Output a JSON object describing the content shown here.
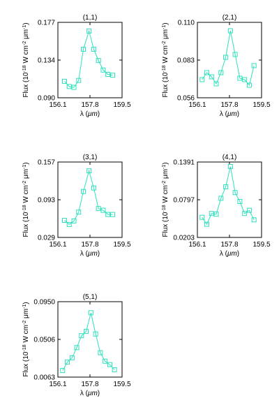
{
  "colors": {
    "series": "#2ee0bd",
    "axes": "#000000",
    "background": "#ffffff"
  },
  "chart_data": [
    {
      "type": "line",
      "title": "(1,1)",
      "xlabel": "λ (μm)",
      "ylabel": "Flux (10^-18 W cm^-2 μm^-1)",
      "xlim": [
        156.1,
        159.5
      ],
      "ylim": [
        0.09,
        0.177
      ],
      "xticks": [
        "156.1",
        "157.8",
        "159.5"
      ],
      "yticks": [
        "0.090",
        "0.134",
        "0.177"
      ],
      "grid": false,
      "marker": "square",
      "x": [
        156.45,
        156.7,
        156.95,
        157.2,
        157.45,
        157.75,
        158.0,
        158.25,
        158.5,
        158.75,
        159.0
      ],
      "y": [
        0.109,
        0.103,
        0.102,
        0.11,
        0.146,
        0.167,
        0.146,
        0.133,
        0.122,
        0.117,
        0.116
      ]
    },
    {
      "type": "line",
      "title": "(2,1)",
      "xlabel": "λ (μm)",
      "ylabel": "Flux (10^-18 W cm^-2 μm^-1)",
      "xlim": [
        156.1,
        159.5
      ],
      "ylim": [
        0.056,
        0.11
      ],
      "xticks": [
        "156.1",
        "157.8",
        "159.5"
      ],
      "yticks": [
        "0.056",
        "0.083",
        "0.110"
      ],
      "grid": false,
      "marker": "square",
      "x": [
        156.35,
        156.6,
        156.85,
        157.1,
        157.35,
        157.6,
        157.85,
        158.1,
        158.35,
        158.6,
        158.85,
        159.1
      ],
      "y": [
        0.069,
        0.074,
        0.071,
        0.066,
        0.074,
        0.085,
        0.104,
        0.087,
        0.07,
        0.069,
        0.065,
        0.079
      ]
    },
    {
      "type": "line",
      "title": "(3,1)",
      "xlabel": "λ (μm)",
      "ylabel": "Flux (10^-18 W cm^-2 μm^-1)",
      "xlim": [
        156.1,
        159.5
      ],
      "ylim": [
        0.029,
        0.157
      ],
      "xticks": [
        "156.1",
        "157.8",
        "159.5"
      ],
      "yticks": [
        "0.029",
        "0.093",
        "0.157"
      ],
      "grid": false,
      "marker": "square",
      "x": [
        156.45,
        156.7,
        156.95,
        157.2,
        157.45,
        157.75,
        158.0,
        158.25,
        158.5,
        158.75,
        159.0
      ],
      "y": [
        0.058,
        0.051,
        0.057,
        0.072,
        0.107,
        0.142,
        0.113,
        0.078,
        0.075,
        0.068,
        0.068
      ]
    },
    {
      "type": "line",
      "title": "(4,1)",
      "xlabel": "λ (μm)",
      "ylabel": "Flux (10^-18 W cm^-2 μm^-1)",
      "xlim": [
        156.1,
        159.5
      ],
      "ylim": [
        0.0203,
        0.1391
      ],
      "xticks": [
        "156.1",
        "157.8",
        "159.5"
      ],
      "yticks": [
        "0.0203",
        "0.0797",
        "0.1391"
      ],
      "grid": false,
      "marker": "square",
      "x": [
        156.35,
        156.6,
        156.85,
        157.1,
        157.35,
        157.6,
        157.85,
        158.1,
        158.35,
        158.6,
        158.85,
        159.1
      ],
      "y": [
        0.052,
        0.041,
        0.058,
        0.057,
        0.082,
        0.1,
        0.132,
        0.091,
        0.077,
        0.058,
        0.063,
        0.048
      ]
    },
    {
      "type": "line",
      "title": "(5,1)",
      "xlabel": "λ (μm)",
      "ylabel": "Flux (10^-18 W cm^-2 μm^-1)",
      "xlim": [
        156.1,
        159.5
      ],
      "ylim": [
        0.0063,
        0.095
      ],
      "xticks": [
        "156.1",
        "157.8",
        "159.5"
      ],
      "yticks": [
        "0.0063",
        "0.0506",
        "0.0950"
      ],
      "grid": false,
      "marker": "square",
      "x": [
        156.35,
        156.6,
        156.85,
        157.1,
        157.35,
        157.6,
        157.85,
        158.1,
        158.35,
        158.6,
        158.85,
        159.1
      ],
      "y": [
        0.014,
        0.024,
        0.029,
        0.041,
        0.055,
        0.06,
        0.082,
        0.057,
        0.035,
        0.025,
        0.021,
        0.015
      ]
    }
  ]
}
